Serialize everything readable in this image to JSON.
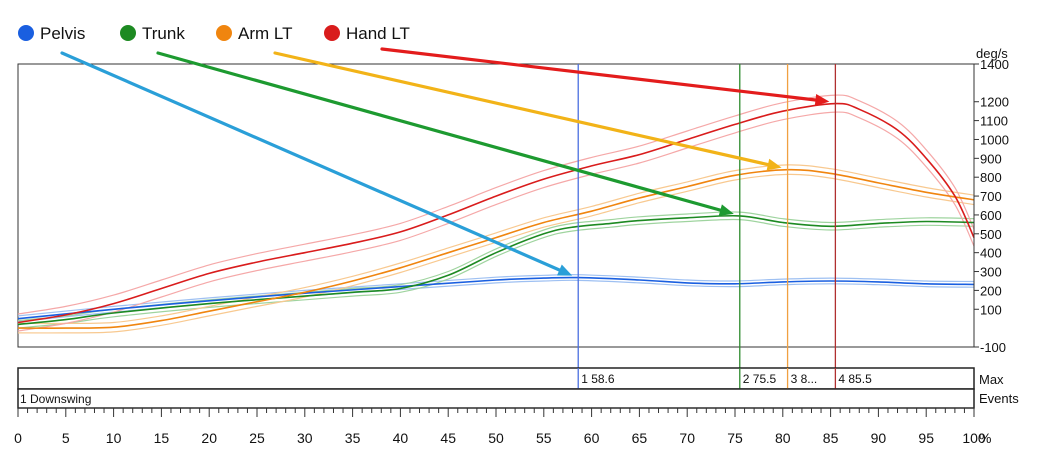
{
  "chart_data": {
    "type": "line",
    "y_unit": "deg/s",
    "x_unit": "%",
    "xlim": [
      0,
      100
    ],
    "ylim": [
      -100,
      1400
    ],
    "x_ticks": [
      0,
      5,
      10,
      15,
      20,
      25,
      30,
      35,
      40,
      45,
      50,
      55,
      60,
      65,
      70,
      75,
      80,
      85,
      90,
      95,
      100
    ],
    "y_ticks": [
      -100,
      100,
      200,
      300,
      400,
      500,
      600,
      700,
      800,
      900,
      1000,
      1100,
      1200,
      1400
    ],
    "grid": false,
    "legend_position": "top-left",
    "series": [
      {
        "name": "Pelvis",
        "color": "#1a5fe0",
        "band_color": "#9ec0f2",
        "x": [
          0,
          10,
          20,
          30,
          40,
          50,
          55,
          58.6,
          65,
          70,
          75,
          80,
          85,
          90,
          95,
          100
        ],
        "values": [
          50,
          100,
          145,
          185,
          220,
          255,
          265,
          268,
          255,
          240,
          235,
          245,
          250,
          245,
          235,
          232
        ],
        "band": 15
      },
      {
        "name": "Trunk",
        "color": "#1d8a22",
        "band_color": "#9fd49f",
        "x": [
          0,
          5,
          10,
          20,
          30,
          35,
          40,
          45,
          50,
          55,
          58,
          62,
          65,
          70,
          75.5,
          80,
          85,
          90,
          95,
          100
        ],
        "values": [
          20,
          45,
          80,
          130,
          170,
          190,
          210,
          280,
          400,
          500,
          535,
          555,
          570,
          585,
          595,
          560,
          540,
          555,
          565,
          560
        ],
        "band": 20
      },
      {
        "name": "Arm LT",
        "color": "#f0850f",
        "band_color": "#f8c990",
        "x": [
          0,
          5,
          10,
          15,
          20,
          25,
          30,
          35,
          40,
          45,
          50,
          55,
          60,
          65,
          70,
          75,
          80.5,
          85,
          90,
          95,
          100
        ],
        "values": [
          0,
          0,
          5,
          40,
          90,
          140,
          190,
          250,
          320,
          400,
          480,
          560,
          620,
          690,
          750,
          810,
          840,
          820,
          770,
          720,
          680
        ],
        "band": 25
      },
      {
        "name": "Hand LT",
        "color": "#d91c1c",
        "band_color": "#f5a8a8",
        "x": [
          0,
          5,
          10,
          15,
          20,
          25,
          30,
          35,
          40,
          45,
          50,
          55,
          60,
          65,
          70,
          75,
          80,
          85.5,
          88,
          92,
          95,
          98,
          100
        ],
        "values": [
          30,
          70,
          130,
          210,
          290,
          350,
          400,
          450,
          510,
          600,
          700,
          790,
          860,
          920,
          1000,
          1080,
          1150,
          1190,
          1160,
          1050,
          900,
          700,
          480
        ],
        "band": 45
      }
    ],
    "markers": [
      {
        "x": 58.6,
        "color": "#4a6ee0",
        "label": "1  58.6"
      },
      {
        "x": 75.5,
        "color": "#2e8b2e",
        "label": "2  75.5"
      },
      {
        "x": 80.5,
        "color": "#f0a040",
        "label": "3  8..."
      },
      {
        "x": 85.5,
        "color": "#b03030",
        "label": "4  85.5"
      }
    ],
    "annotations": [
      {
        "type": "arrow",
        "series": "Pelvis",
        "color": "#2a9fd8",
        "target": [
          58.6,
          268
        ]
      },
      {
        "type": "arrow",
        "series": "Trunk",
        "color": "#1d9a30",
        "target": [
          75.5,
          595
        ]
      },
      {
        "type": "arrow",
        "series": "Arm LT",
        "color": "#f2b318",
        "target": [
          80.5,
          840
        ]
      },
      {
        "type": "arrow",
        "series": "Hand LT",
        "color": "#e31c1c",
        "target": [
          85.5,
          1190
        ]
      }
    ],
    "band_labels": {
      "max": "Max",
      "events": "Events"
    },
    "events": [
      {
        "x": 0,
        "label": "1 Downswing"
      }
    ]
  }
}
